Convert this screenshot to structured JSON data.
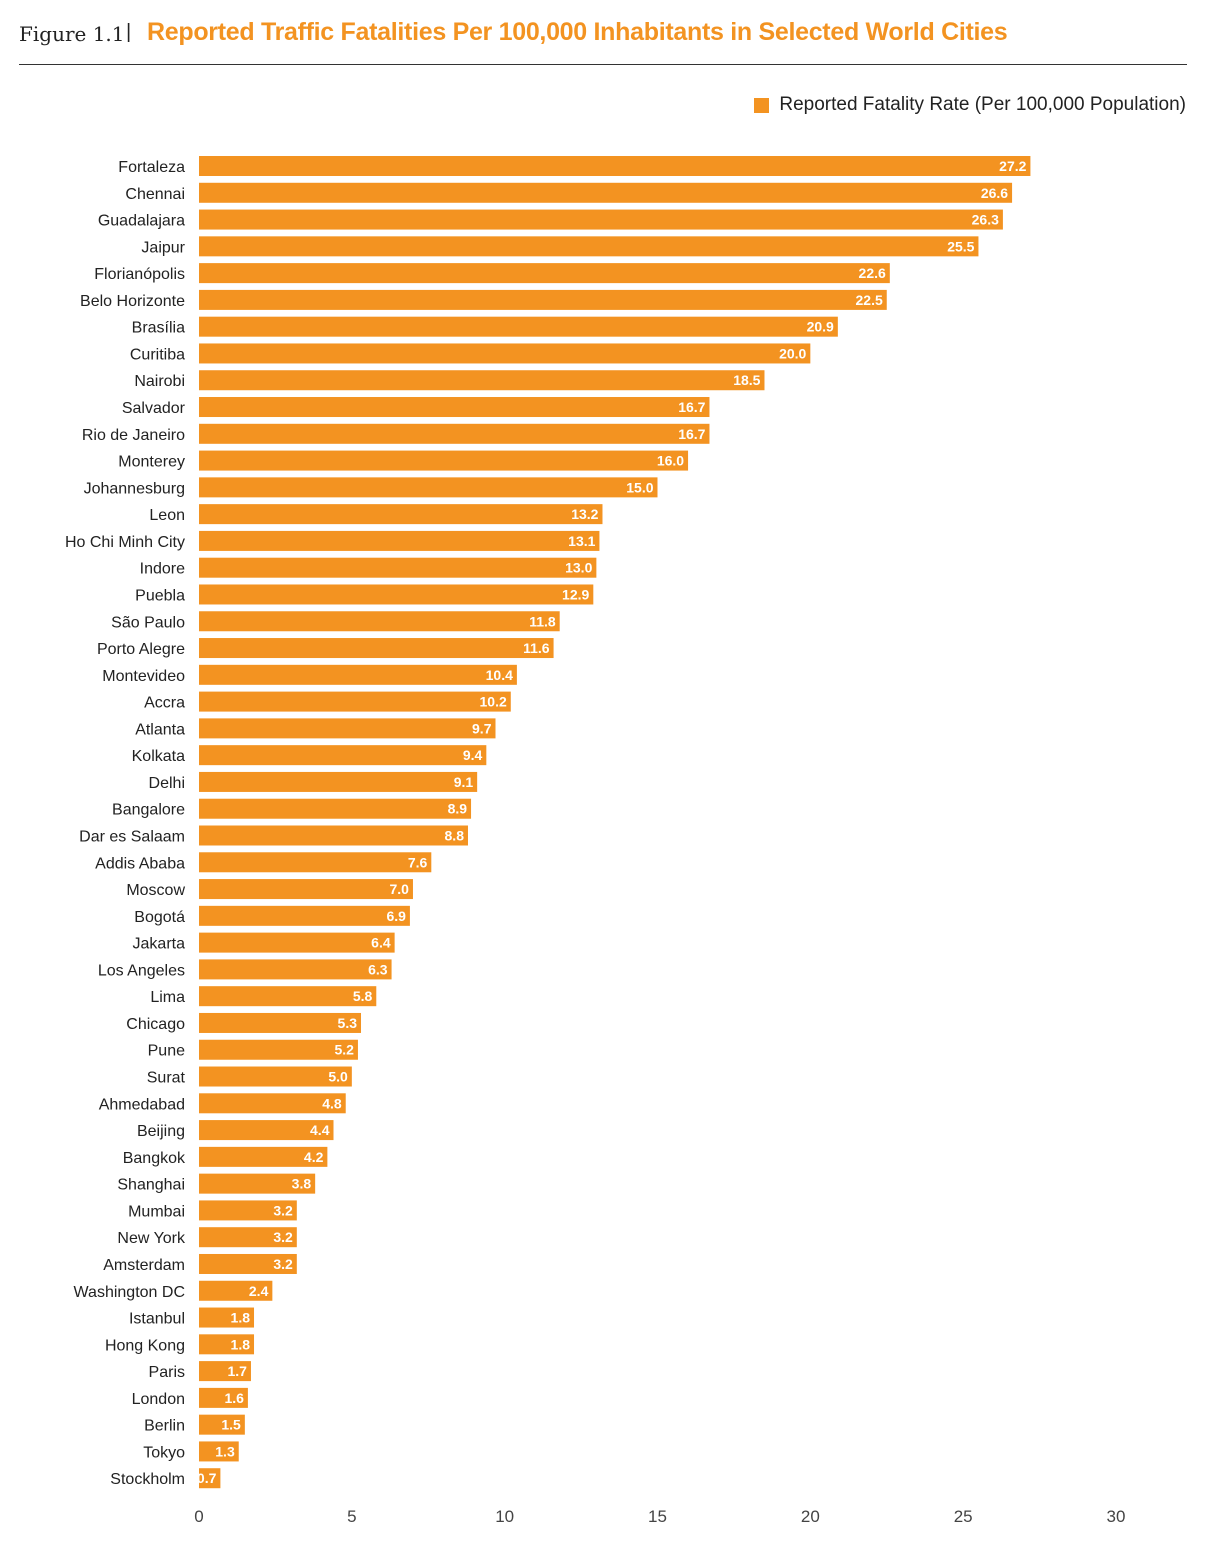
{
  "header": {
    "figure_label": "Figure 1.1",
    "separator": "|",
    "title": "Reported Traffic Fatalities Per 100,000 Inhabitants in Selected World Cities"
  },
  "colors": {
    "bar": "#f39321",
    "title": "#f39321",
    "text": "#222222"
  },
  "chart_data": {
    "type": "bar",
    "orientation": "horizontal",
    "title": "Reported Traffic Fatalities Per 100,000 Inhabitants in Selected World Cities",
    "legend_position": "top-right",
    "grid": false,
    "xlim": [
      0,
      30
    ],
    "x_ticks": [
      0,
      5,
      10,
      15,
      20,
      25,
      30
    ],
    "series": [
      {
        "name": "Reported Fatality Rate (Per 100,000 Population)"
      }
    ],
    "categories": [
      "Fortaleza",
      "Chennai",
      "Guadalajara",
      "Jaipur",
      "Florianópolis",
      "Belo Horizonte",
      "Brasília",
      "Curitiba",
      "Nairobi",
      "Salvador",
      "Rio de Janeiro",
      "Monterey",
      "Johannesburg",
      "Leon",
      "Ho Chi Minh City",
      "Indore",
      "Puebla",
      "São Paulo",
      "Porto Alegre",
      "Montevideo",
      "Accra",
      "Atlanta",
      "Kolkata",
      "Delhi",
      "Bangalore",
      "Dar es Salaam",
      "Addis Ababa",
      "Moscow",
      "Bogotá",
      "Jakarta",
      "Los Angeles",
      "Lima",
      "Chicago",
      "Pune",
      "Surat",
      "Ahmedabad",
      "Beijing",
      "Bangkok",
      "Shanghai",
      "Mumbai",
      "New York",
      "Amsterdam",
      "Washington DC",
      "Istanbul",
      "Hong Kong",
      "Paris",
      "London",
      "Berlin",
      "Tokyo",
      "Stockholm"
    ],
    "values": [
      27.2,
      26.6,
      26.3,
      25.5,
      22.6,
      22.5,
      20.9,
      20.0,
      18.5,
      16.7,
      16.7,
      16.0,
      15.0,
      13.2,
      13.1,
      13.0,
      12.9,
      11.8,
      11.6,
      10.4,
      10.2,
      9.7,
      9.4,
      9.1,
      8.9,
      8.8,
      7.6,
      7.0,
      6.9,
      6.4,
      6.3,
      5.8,
      5.3,
      5.2,
      5.0,
      4.8,
      4.4,
      4.2,
      3.8,
      3.2,
      3.2,
      3.2,
      2.4,
      1.8,
      1.8,
      1.7,
      1.6,
      1.5,
      1.3,
      0.7
    ]
  }
}
